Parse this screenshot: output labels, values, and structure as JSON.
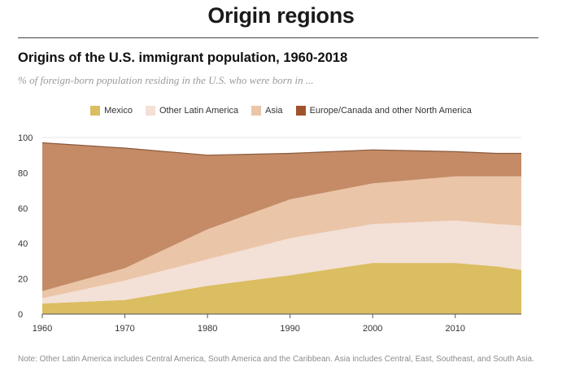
{
  "header": {
    "page_title": "Origin regions"
  },
  "chart_data": {
    "type": "area",
    "stacked": true,
    "title": "Origins of the U.S. immigrant population, 1960-2018",
    "subtitle": "% of foreign-born population residing in the U.S. who were born in ...",
    "x": [
      1960,
      1970,
      1980,
      1990,
      2000,
      2010,
      2015,
      2018
    ],
    "xticks": [
      "1960",
      "1970",
      "1980",
      "1990",
      "2000",
      "2010"
    ],
    "yticks": [
      "0",
      "20",
      "40",
      "60",
      "80",
      "100"
    ],
    "xlim": [
      1960,
      2018
    ],
    "ylim": [
      0,
      100
    ],
    "grid": true,
    "legend_position": "top-center",
    "series": [
      {
        "name": "Mexico",
        "color": "#dbbd62",
        "values": [
          6,
          8,
          16,
          22,
          29,
          29,
          27,
          25
        ]
      },
      {
        "name": "Other Latin America",
        "color": "#f3e0d6",
        "values": [
          3,
          11,
          15,
          21,
          22,
          24,
          24,
          25
        ]
      },
      {
        "name": "Asia",
        "color": "#ebc5a8",
        "values": [
          4,
          7,
          17,
          22,
          23,
          25,
          27,
          28
        ]
      },
      {
        "name": "Europe/Canada and other North America",
        "color": "#c48b66",
        "legend_color": "#a0522d",
        "values": [
          84,
          68,
          42,
          26,
          19,
          14,
          13,
          13
        ]
      }
    ]
  },
  "footer": {
    "note": "Note: Other Latin America includes Central America, South America and the Caribbean. Asia includes Central, East, Southeast, and South Asia."
  }
}
